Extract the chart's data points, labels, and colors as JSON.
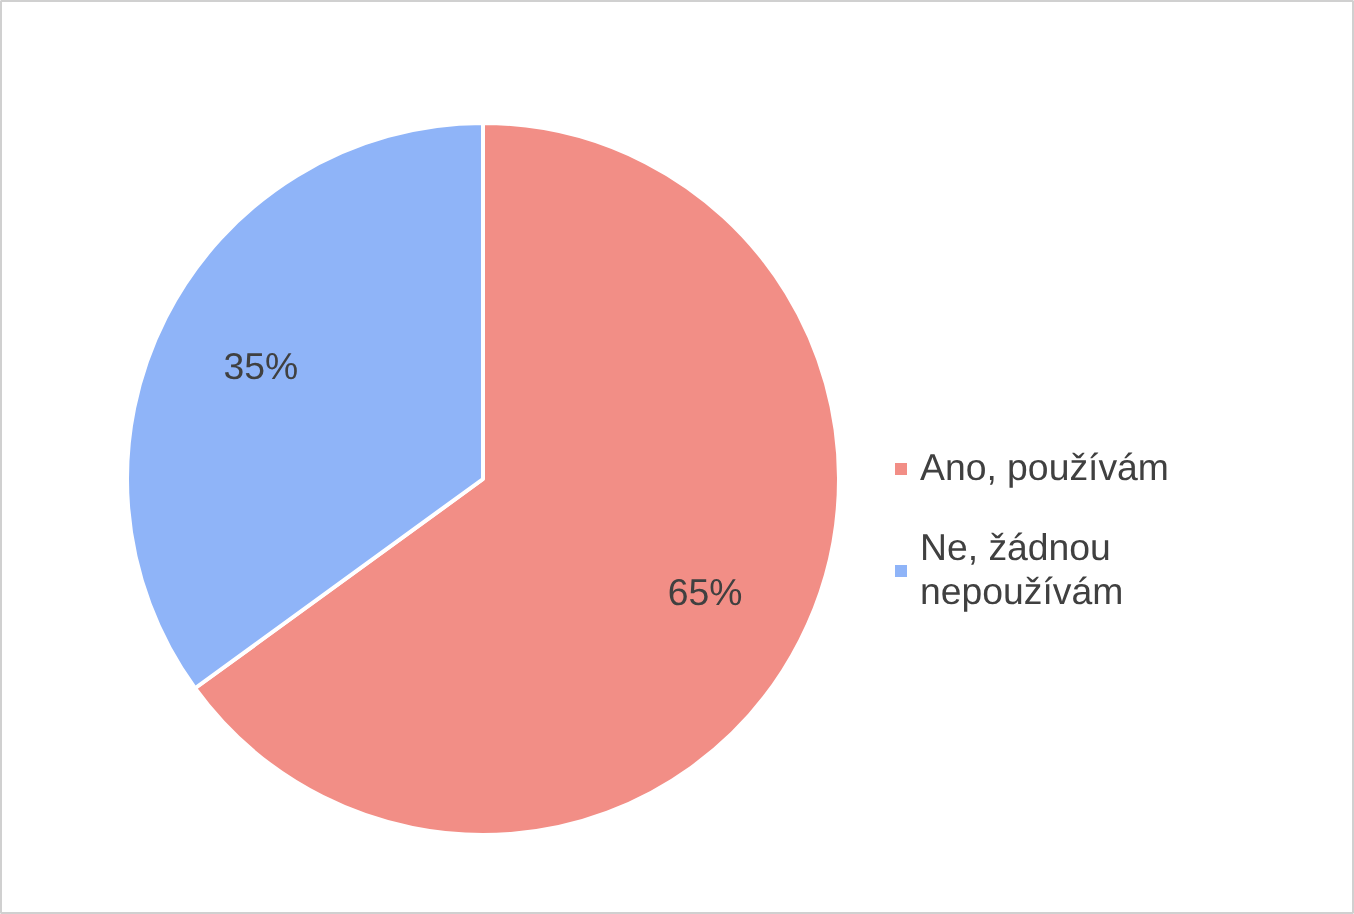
{
  "chart_data": {
    "type": "pie",
    "categories": [
      "Ano, používám",
      "Ne, žádnou nepoužívám"
    ],
    "values": [
      65,
      35
    ],
    "colors": [
      "#f28e86",
      "#8fb4f8"
    ],
    "value_labels": [
      "65%",
      "35%"
    ],
    "legend": "right"
  }
}
